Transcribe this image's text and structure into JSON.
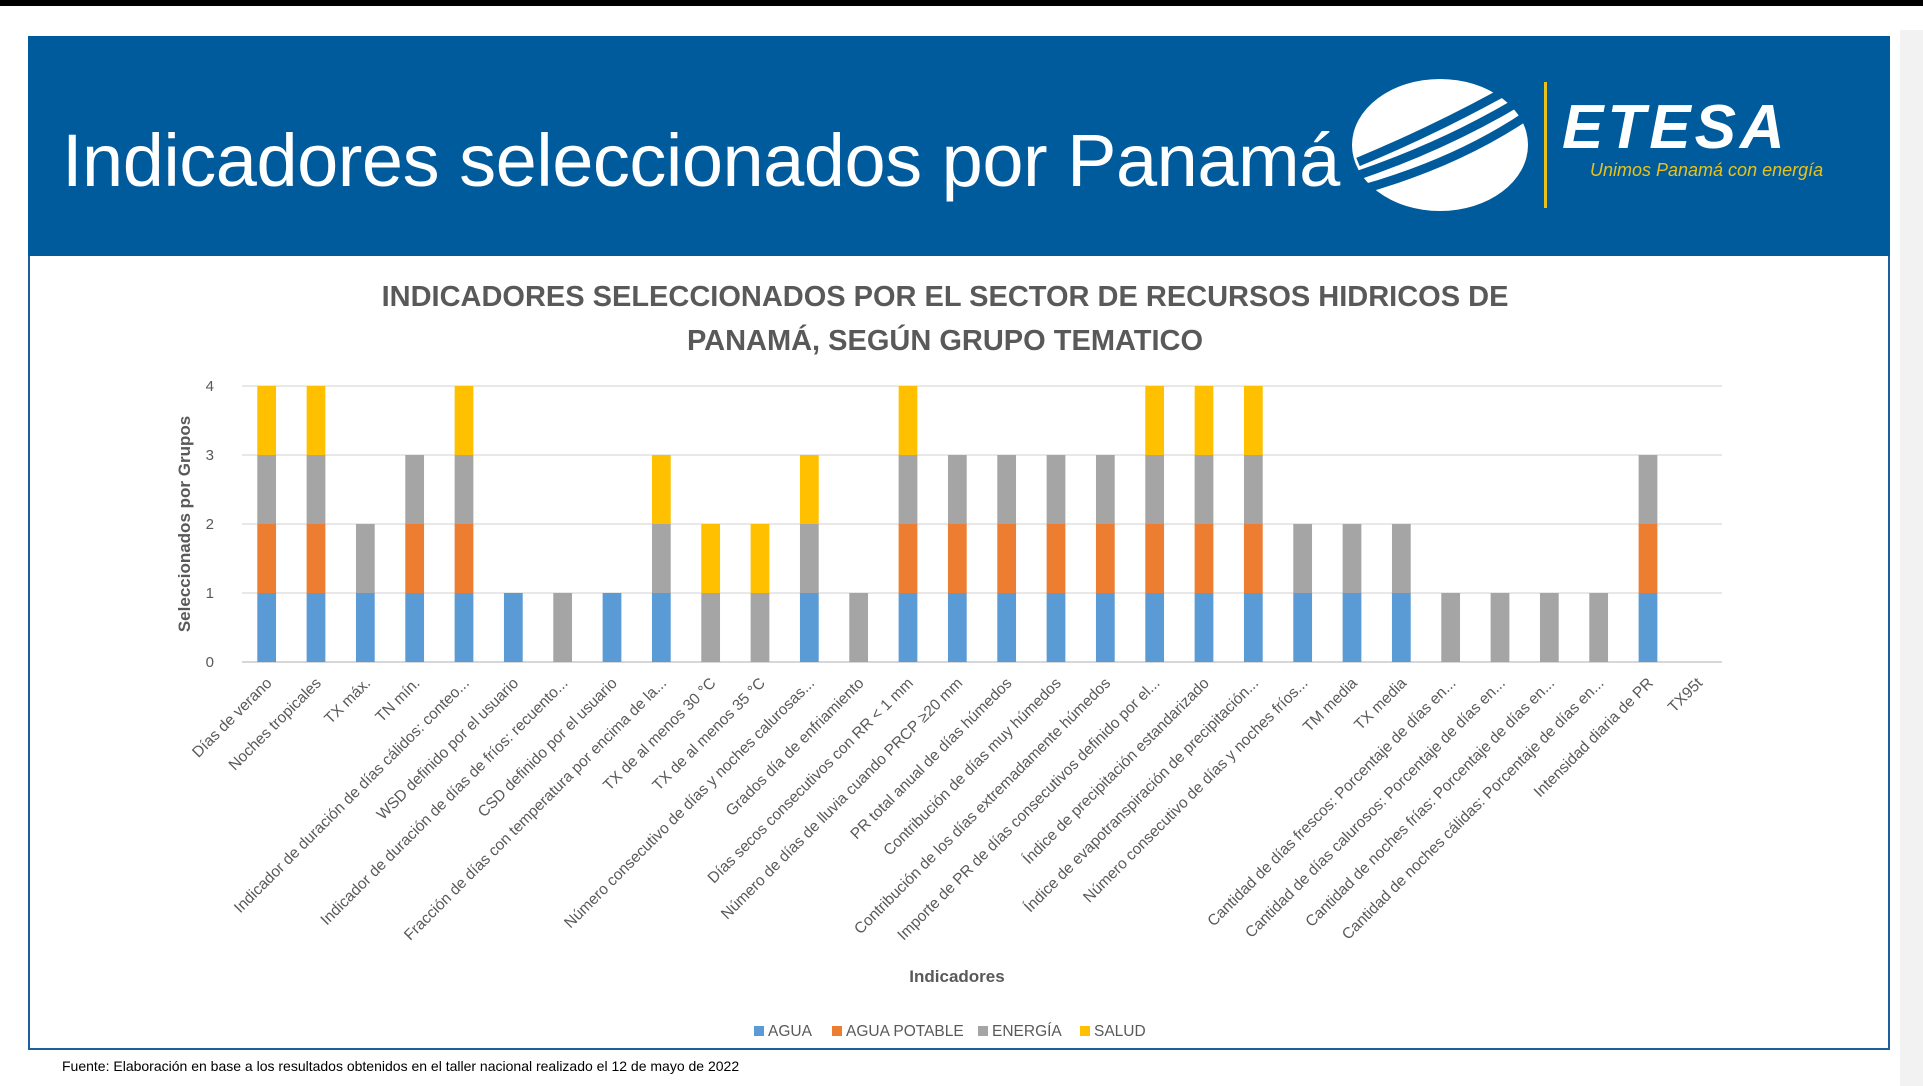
{
  "slide": {
    "title": "Indicadores seleccionados por Panamá",
    "logo_text": "ETESA",
    "logo_tagline": "Unimos Panamá con energía",
    "source_note": "Fuente: Elaboración en base a los resultados obtenidos en el taller nacional realizado el 12 de mayo de 2022"
  },
  "colors": {
    "header": "#005b9d",
    "AGUA": "#5b9bd5",
    "AGUA POTABLE": "#ed7d31",
    "ENERGÍA": "#a5a5a5",
    "SALUD": "#ffc000",
    "grid": "#d9d9d9",
    "axis_text": "#595959",
    "tagline": "#e8c21b"
  },
  "chart_data": {
    "type": "bar",
    "stacked": true,
    "title_lines": [
      "INDICADORES SELECCIONADOS POR EL SECTOR DE RECURSOS HIDRICOS DE",
      "PANAMÁ, SEGÚN GRUPO TEMATICO"
    ],
    "xlabel": "Indicadores",
    "ylabel": "Seleccionados por Grupos",
    "ylim": [
      0,
      4
    ],
    "yticks": [
      0,
      1,
      2,
      3,
      4
    ],
    "grid": true,
    "legend_position": "bottom",
    "categories": [
      "Días de verano",
      "Noches tropicales",
      "TX máx.",
      "TN mín.",
      "Indicador de duración de días cálidos: conteo...",
      "WSD definido por el usuario",
      "Indicador de duración de días de fríos: recuento...",
      "CSD definido por el usuario",
      "Fracción de días con temperatura por encima de la...",
      "TX de al menos 30 °C",
      "TX de al menos 35 °C",
      "Número consecutivo de días y noches calurosas...",
      "Grados día de enfriamiento",
      "Días secos consecutivos con RR < 1 mm",
      "Número de días de lluvia cuando PRCP ≥20 mm",
      "PR total anual de días húmedos",
      "Contribución de días muy húmedos",
      "Contribución de los días extremadamente húmedos",
      "Importe de PR de días consecutivos definido por el...",
      "Índice de precipitación estandarizado",
      "Índice de evapotranspiración de precipitación...",
      "Número consecutivo de días y noches fríos...",
      "TM media",
      "TX media",
      "Cantidad de días frescos: Porcentaje de días en...",
      "Cantidad de días calurosos: Porcentaje de días en...",
      "Cantidad de noches frías: Porcentaje de días en...",
      "Cantidad de noches cálidas: Porcentaje de días en...",
      "Intensidad diaria de PR",
      "TX95t"
    ],
    "series": [
      {
        "name": "AGUA",
        "values": [
          1,
          1,
          1,
          1,
          1,
          1,
          0,
          1,
          1,
          0,
          0,
          1,
          0,
          1,
          1,
          1,
          1,
          1,
          1,
          1,
          1,
          1,
          1,
          1,
          0,
          0,
          0,
          0,
          1,
          0
        ]
      },
      {
        "name": "AGUA POTABLE",
        "values": [
          1,
          1,
          0,
          1,
          1,
          0,
          0,
          0,
          0,
          0,
          0,
          0,
          0,
          1,
          1,
          1,
          1,
          1,
          1,
          1,
          1,
          0,
          0,
          0,
          0,
          0,
          0,
          0,
          1,
          0
        ]
      },
      {
        "name": "ENERGÍA",
        "values": [
          1,
          1,
          1,
          1,
          1,
          0,
          1,
          0,
          1,
          1,
          1,
          1,
          1,
          1,
          1,
          1,
          1,
          1,
          1,
          1,
          1,
          1,
          1,
          1,
          1,
          1,
          1,
          1,
          1,
          0
        ]
      },
      {
        "name": "SALUD",
        "values": [
          1,
          1,
          0,
          0,
          1,
          0,
          0,
          0,
          1,
          1,
          1,
          1,
          0,
          1,
          0,
          0,
          0,
          0,
          1,
          1,
          1,
          0,
          0,
          0,
          0,
          0,
          0,
          0,
          0,
          0
        ]
      }
    ]
  }
}
